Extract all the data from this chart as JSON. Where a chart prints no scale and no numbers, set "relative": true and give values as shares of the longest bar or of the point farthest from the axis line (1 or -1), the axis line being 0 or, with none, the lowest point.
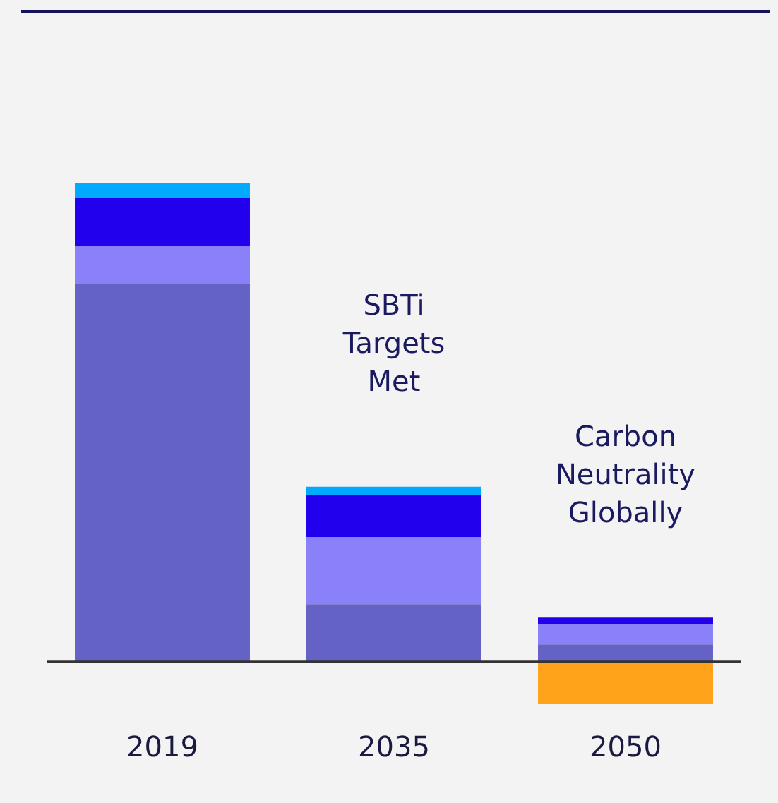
{
  "chart_data": {
    "type": "bar",
    "stacked": true,
    "relative": true,
    "grid": false,
    "legend": false,
    "tick_labels": "x",
    "categories": [
      "2019",
      "2035",
      "2050"
    ],
    "series": [
      {
        "color": "#6462c4",
        "values": [
          0.79,
          0.12,
          0.036
        ]
      },
      {
        "color": "#8a80f8",
        "values": [
          0.078,
          0.14,
          0.042
        ]
      },
      {
        "color": "#2200ee",
        "values": [
          0.101,
          0.089,
          0.014
        ]
      },
      {
        "color": "#00aaff",
        "values": [
          0.031,
          0.017,
          null
        ]
      },
      {
        "color": "#ffa31a",
        "values": [
          null,
          null,
          -0.089
        ]
      }
    ],
    "annotations": [
      "SBTi\nTargets\nMet",
      "Carbon\nNeutrality\nGlobally"
    ]
  }
}
